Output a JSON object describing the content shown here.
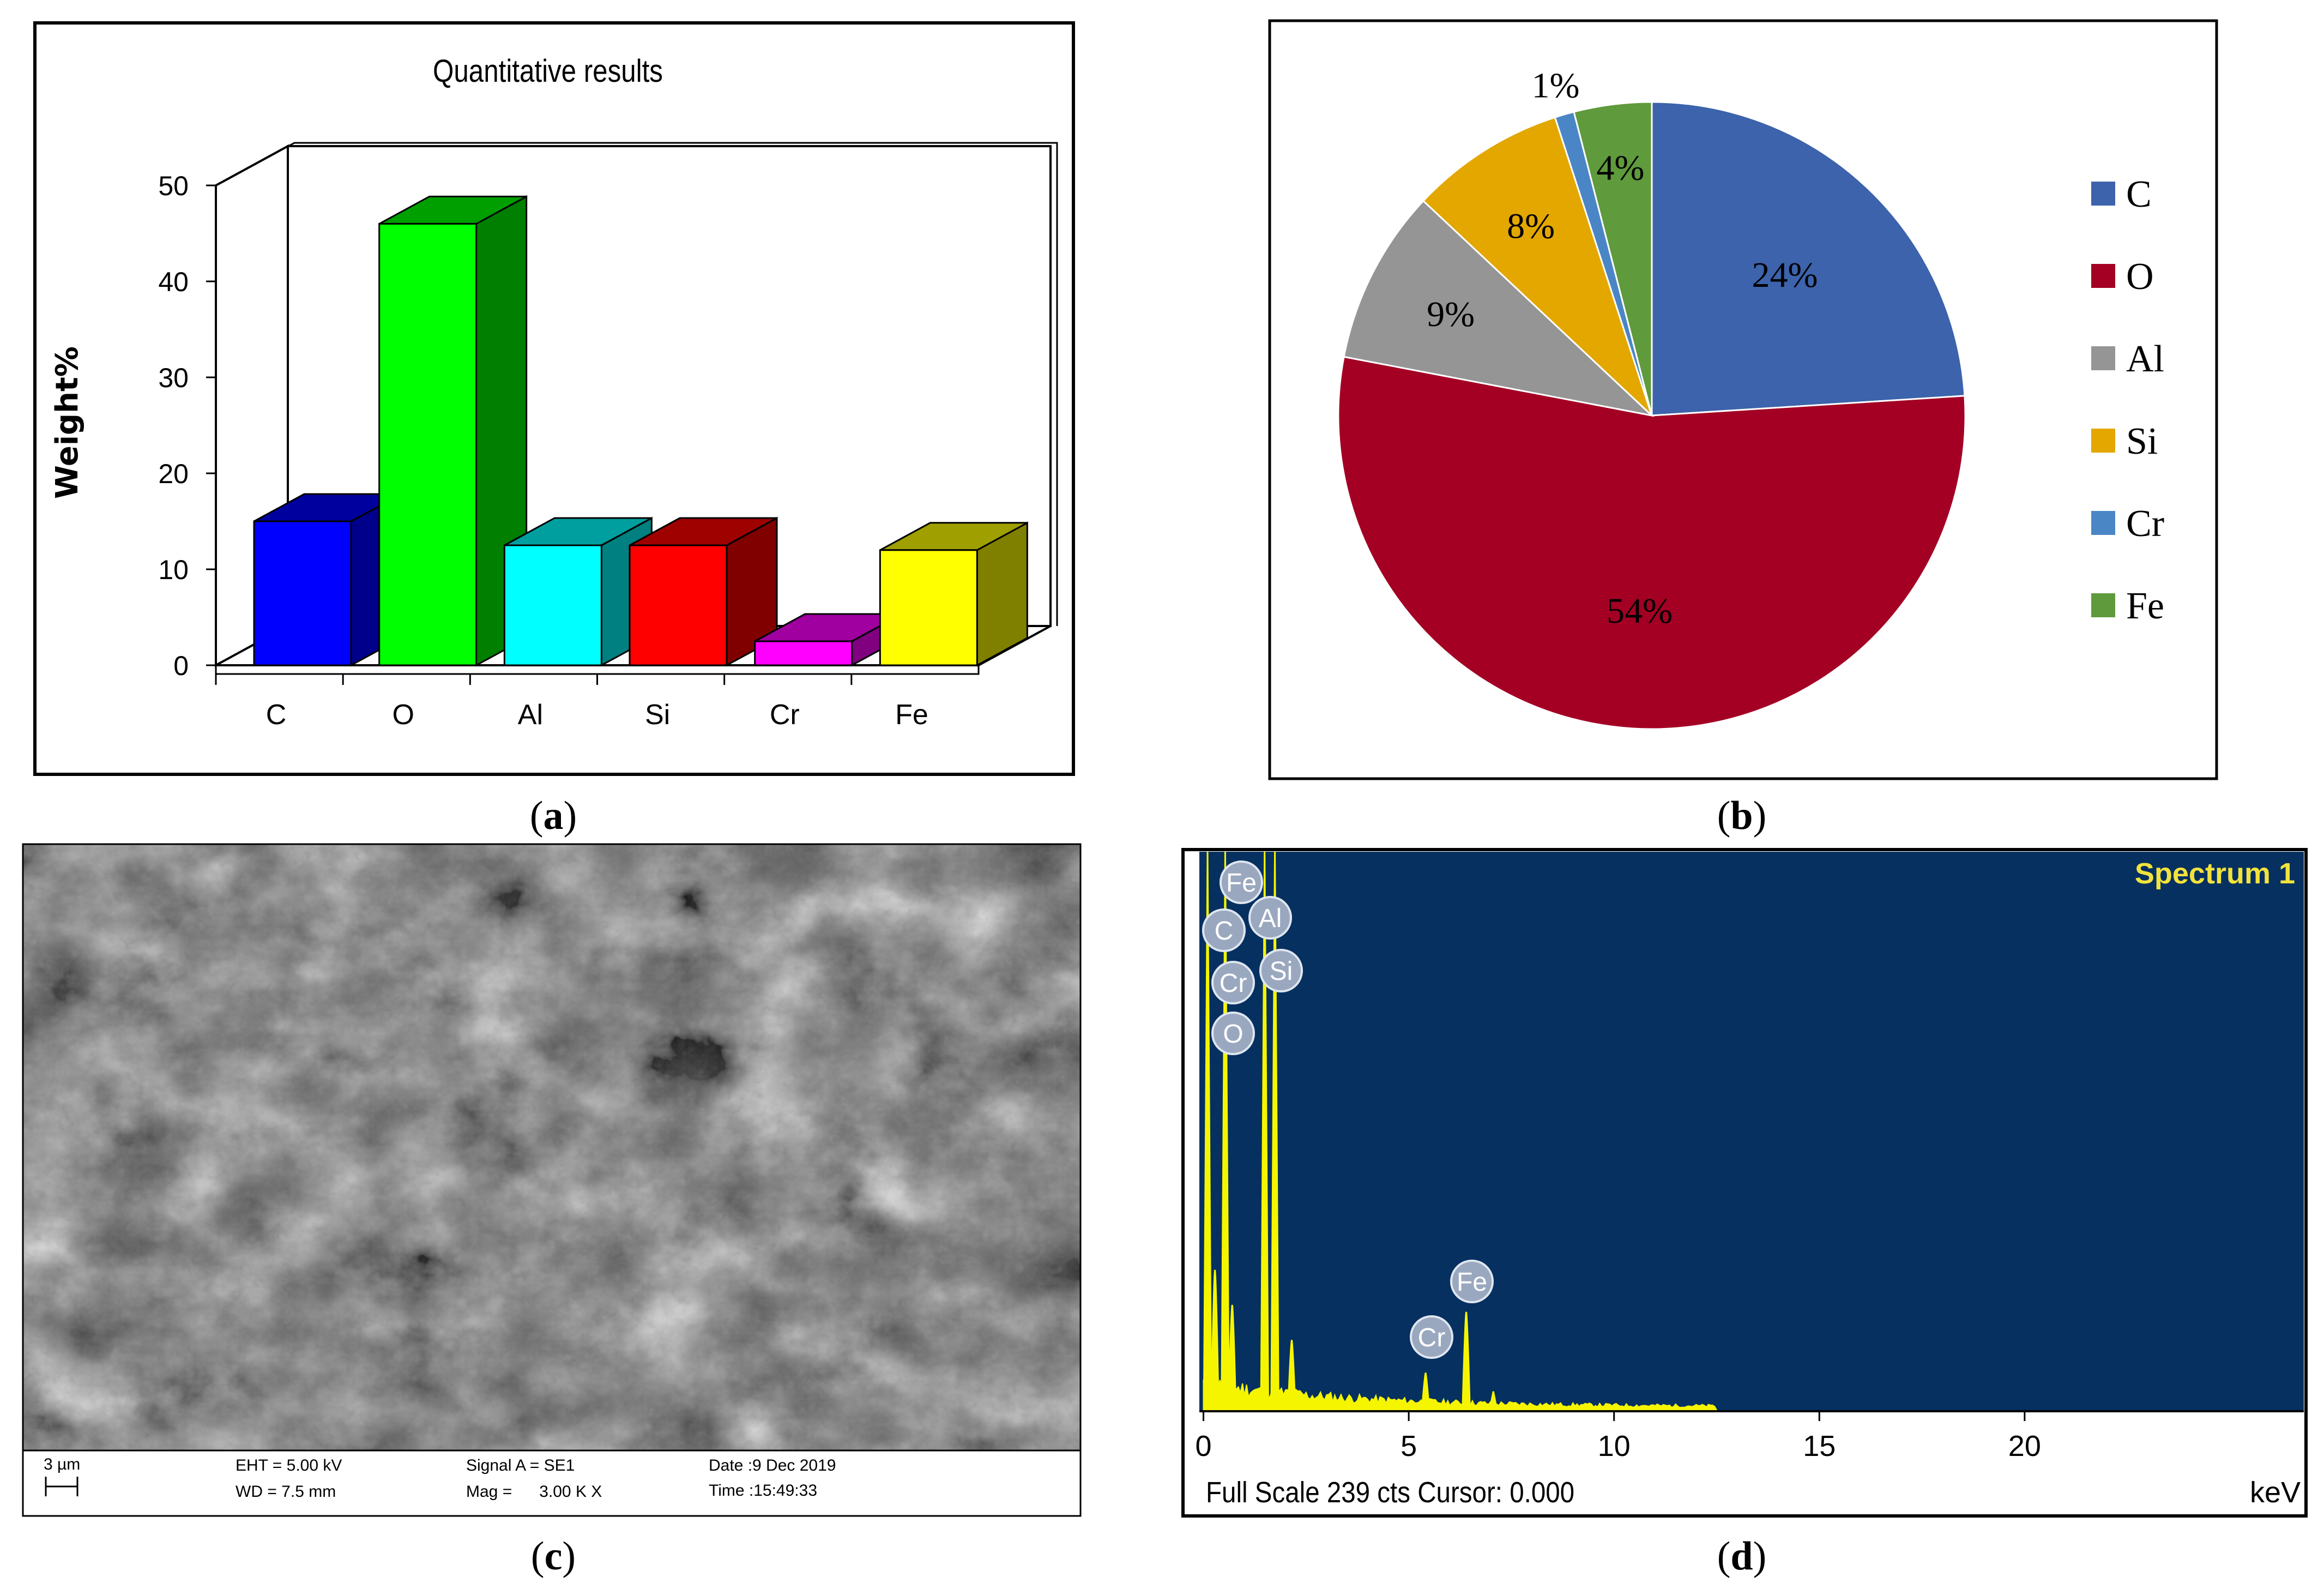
{
  "panels": {
    "a": {
      "caption_open": "(",
      "caption_letter": "a",
      "caption_close": ")",
      "chart_data": {
        "type": "bar",
        "title": "Quantitative results",
        "xlabel": "",
        "ylabel": "Weight%",
        "categories": [
          "C",
          "O",
          "Al",
          "Si",
          "Cr",
          "Fe"
        ],
        "values": [
          15,
          46,
          12.5,
          12.5,
          2.5,
          12
        ],
        "ylim": [
          0,
          50
        ],
        "yticks": [
          "0",
          "10",
          "20",
          "30",
          "40",
          "50"
        ],
        "colors": [
          {
            "front": "#0000ff",
            "top": "#00009f",
            "side": "#00008a"
          },
          {
            "front": "#00ff00",
            "top": "#009f00",
            "side": "#007f00"
          },
          {
            "front": "#00ffff",
            "top": "#009f9f",
            "side": "#008080"
          },
          {
            "front": "#ff0000",
            "top": "#9f0000",
            "side": "#800000"
          },
          {
            "front": "#ff00ff",
            "top": "#9f009f",
            "side": "#800080"
          },
          {
            "front": "#ffff00",
            "top": "#9f9f00",
            "side": "#808000"
          }
        ]
      }
    },
    "b": {
      "caption_open": "(",
      "caption_letter": "b",
      "caption_close": ")",
      "chart_data": {
        "type": "pie",
        "categories": [
          "C",
          "O",
          "Al",
          "Si",
          "Cr",
          "Fe"
        ],
        "values": [
          24,
          54,
          9,
          8,
          1,
          4
        ],
        "labels": [
          "24%",
          "54%",
          "9%",
          "8%",
          "1%",
          "4%"
        ],
        "legend": "right",
        "colors": [
          "#3c63ab",
          "#a30024",
          "#959595",
          "#e3a700",
          "#4a86c5",
          "#5f9a3c"
        ]
      }
    },
    "c": {
      "caption_open": "(",
      "caption_letter": "c",
      "caption_close": ")",
      "scale_label": "3 µm",
      "eht": "EHT =  5.00 kV",
      "wd": "WD =  7.5 mm",
      "signal": "Signal A = SE1",
      "mag": "Mag =      3.00 K X",
      "date": "Date :9 Dec 2019",
      "time": "Time :15:49:33"
    },
    "d": {
      "caption_open": "(",
      "caption_letter": "d",
      "caption_close": ")",
      "title": "Spectrum 1",
      "footer": "Full Scale 239 cts Cursor: 0.000",
      "unit": "keV",
      "chart_data": {
        "type": "line",
        "xlabel": "keV",
        "xlim": [
          -0.1,
          26.8
        ],
        "xticks": [
          "0",
          "5",
          "10",
          "15",
          "20"
        ],
        "ylim": [
          0,
          239
        ],
        "peaks": [
          {
            "x": 0.1,
            "y": 239
          },
          {
            "x": 0.28,
            "y": 60
          },
          {
            "x": 0.53,
            "y": 239
          },
          {
            "x": 0.7,
            "y": 45
          },
          {
            "x": 1.49,
            "y": 239
          },
          {
            "x": 1.74,
            "y": 239
          },
          {
            "x": 2.15,
            "y": 30
          },
          {
            "x": 5.41,
            "y": 16
          },
          {
            "x": 6.4,
            "y": 42
          },
          {
            "x": 7.06,
            "y": 8
          }
        ],
        "element_labels": [
          {
            "text": "Fe",
            "x": 0.7
          },
          {
            "text": "C",
            "x": 0.28
          },
          {
            "text": "Cr",
            "x": 0.57
          },
          {
            "text": "O",
            "x": 0.53
          },
          {
            "text": "Al",
            "x": 1.49
          },
          {
            "text": "Si",
            "x": 1.74
          },
          {
            "text": "Cr",
            "x": 5.41
          },
          {
            "text": "Fe",
            "x": 6.4
          }
        ]
      }
    }
  }
}
